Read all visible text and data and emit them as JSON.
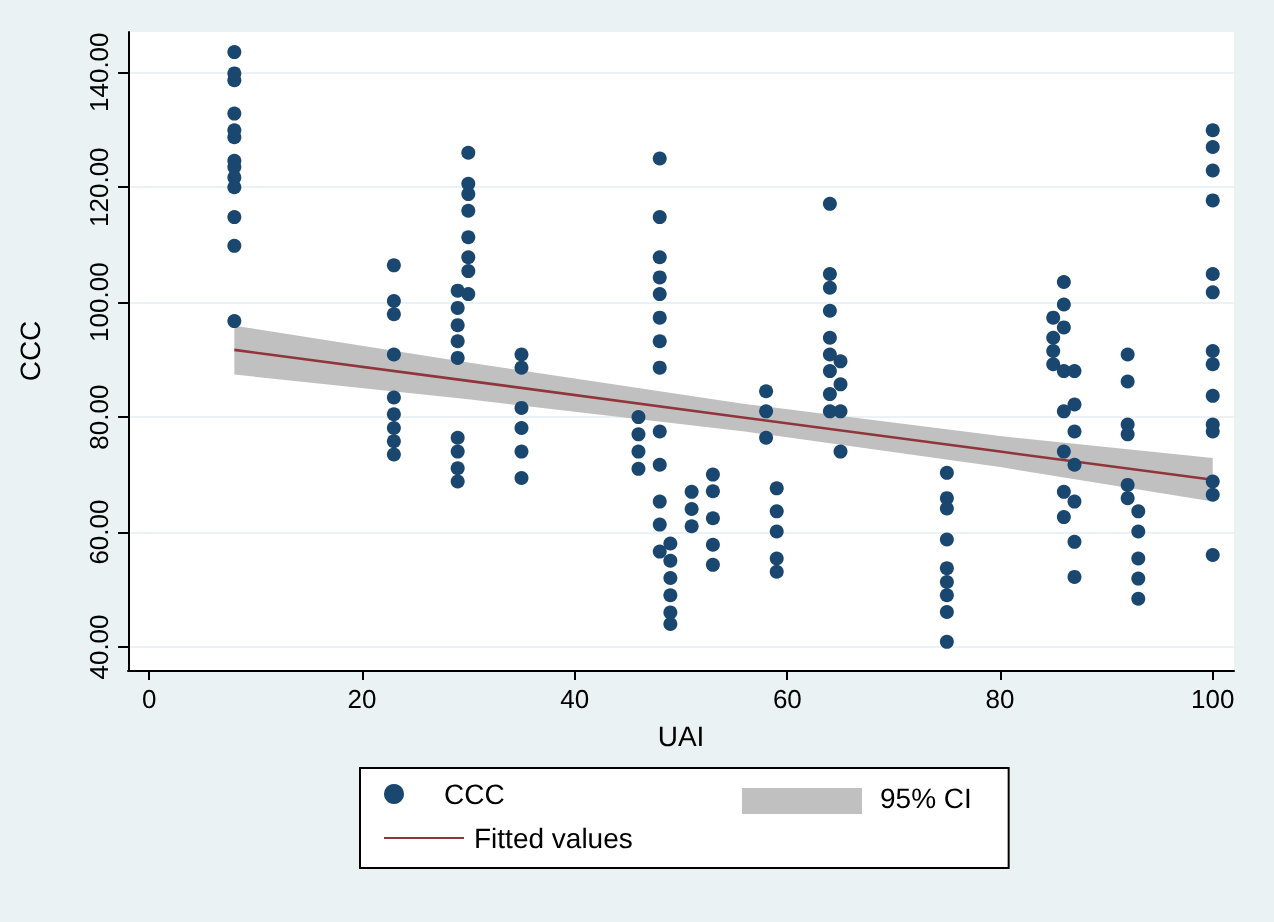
{
  "chart_data": {
    "type": "scatter",
    "xlabel": "UAI",
    "ylabel": "CCC",
    "xlim": [
      -2,
      102
    ],
    "xticks": [
      0,
      20,
      40,
      60,
      80,
      100
    ],
    "ylim": [
      36,
      147
    ],
    "yticks": [
      {
        "value": 40,
        "label": "40.00"
      },
      {
        "value": 60,
        "label": "60.00"
      },
      {
        "value": 80,
        "label": "80.00"
      },
      {
        "value": 100,
        "label": "100.00"
      },
      {
        "value": 120,
        "label": "120.00"
      },
      {
        "value": 140,
        "label": "140.00"
      }
    ],
    "grid": "y",
    "legend": "bottom",
    "marker": "circle",
    "annotations": [
      "95% CI"
    ],
    "series": [
      {
        "name": "CCC",
        "color": "#1a476f",
        "x": [
          8,
          8,
          8,
          8,
          8,
          8,
          8,
          8,
          8,
          8,
          8,
          8,
          8,
          23,
          23,
          23,
          23,
          23,
          23,
          23,
          23,
          23,
          29,
          29,
          29,
          29,
          29,
          29,
          29,
          29,
          29,
          30,
          30,
          30,
          30,
          30,
          30,
          30,
          30,
          35,
          35,
          35,
          35,
          35,
          35,
          46,
          46,
          46,
          46,
          48,
          48,
          48,
          48,
          48,
          48,
          48,
          48,
          48,
          48,
          48,
          48,
          48,
          49,
          49,
          49,
          49,
          49,
          49,
          51,
          51,
          51,
          53,
          53,
          53,
          53,
          53,
          58,
          58,
          58,
          59,
          59,
          59,
          59,
          59,
          64,
          64,
          64,
          64,
          64,
          64,
          64,
          64,
          64,
          65,
          65,
          65,
          65,
          75,
          75,
          75,
          75,
          75,
          75,
          75,
          75,
          75,
          85,
          85,
          85,
          85,
          86,
          86,
          86,
          86,
          86,
          86,
          86,
          86,
          87,
          87,
          87,
          87,
          87,
          87,
          87,
          92,
          92,
          92,
          92,
          92,
          92,
          93,
          93,
          93,
          93,
          93,
          100,
          100,
          100,
          100,
          100,
          100,
          100,
          100,
          100,
          100,
          100,
          100,
          100,
          100
        ],
        "values": [
          143.5,
          139.8,
          138.6,
          132.8,
          129.9,
          128.7,
          124.6,
          123.5,
          121.7,
          120,
          114.8,
          109.8,
          96.7,
          106.4,
          100.2,
          97.9,
          90.9,
          83.4,
          80.5,
          78.1,
          75.8,
          73.5,
          102,
          99,
          96,
          93.2,
          90.3,
          76.4,
          74,
          71.1,
          68.8,
          126,
          120.6,
          118.8,
          115.9,
          111.3,
          107.8,
          105.4,
          101.4,
          90.9,
          88.6,
          81.6,
          78.1,
          74,
          69.4,
          80,
          77,
          74,
          71,
          125,
          114.8,
          107.8,
          104.3,
          101.4,
          97.3,
          93.2,
          88.6,
          77.5,
          71.7,
          65.3,
          61.3,
          56.6,
          58,
          55,
          52,
          49,
          46,
          44,
          67,
          64,
          61,
          70,
          67.1,
          62.4,
          57.8,
          54.3,
          84.5,
          81,
          76.4,
          67.6,
          63.6,
          60.1,
          55.4,
          53.1,
          117.1,
          104.9,
          102.5,
          98.5,
          93.8,
          90.9,
          88,
          84,
          81,
          89.7,
          85.7,
          81,
          74,
          70.3,
          65.9,
          64.1,
          58.7,
          53.7,
          51.3,
          49,
          46.1,
          40.9,
          97.3,
          93.8,
          91.5,
          89.2,
          103.5,
          99.6,
          95.6,
          88,
          81,
          74,
          67,
          62.6,
          88,
          82.2,
          77.5,
          71.7,
          65.3,
          58.3,
          52.2,
          90.9,
          86.2,
          78.7,
          77,
          68.2,
          65.9,
          63.6,
          60.1,
          55.4,
          51.9,
          48.4,
          129.9,
          127,
          122.9,
          117.7,
          104.9,
          101.7,
          91.5,
          89.2,
          83.7,
          78.7,
          77.5,
          68.8,
          66.5,
          56
        ]
      },
      {
        "name": "Fitted values",
        "type": "line",
        "color": "#90353b",
        "marker": "none",
        "x": [
          8,
          30,
          56,
          80,
          100
        ],
        "values": [
          91.7,
          86.3,
          79.9,
          74.0,
          69.1
        ],
        "lower": [
          87.4,
          83.1,
          77.5,
          71.3,
          65.3
        ],
        "upper": [
          95.9,
          89.5,
          82.3,
          76.7,
          72.9
        ]
      }
    ]
  }
}
